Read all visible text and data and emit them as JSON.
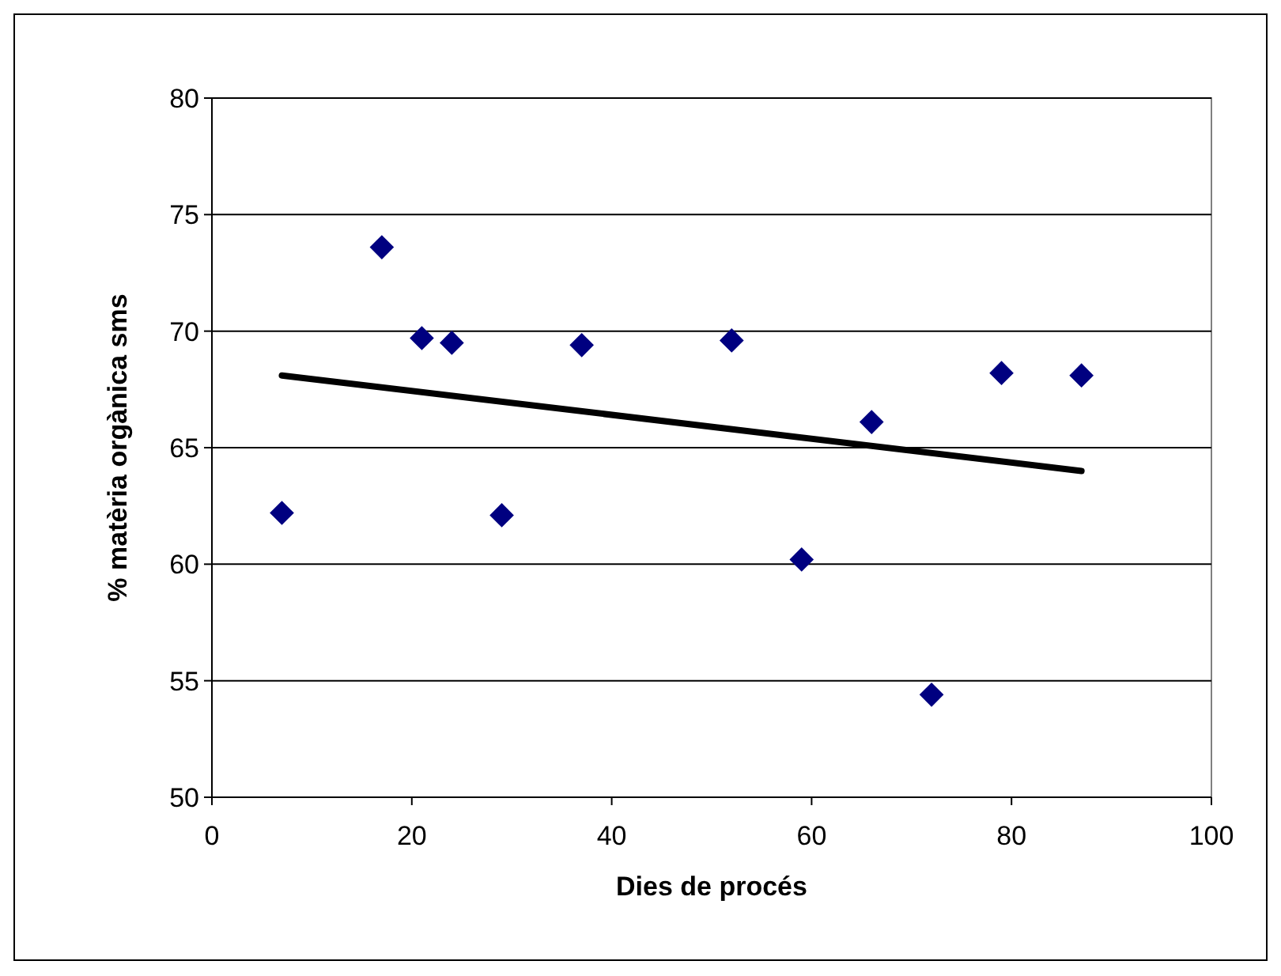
{
  "chart_data": {
    "type": "scatter",
    "xlabel": "Dies de procés",
    "ylabel": "% matèria orgànica sms",
    "xlim": [
      0,
      100
    ],
    "xticks": [
      0,
      20,
      40,
      60,
      80,
      100
    ],
    "ylim": [
      50,
      80
    ],
    "yticks": [
      50,
      55,
      60,
      65,
      70,
      75,
      80
    ],
    "grid": "y",
    "series": [
      {
        "color": "#000080",
        "marker": "diamond",
        "x": [
          7,
          17,
          21,
          24,
          29,
          37,
          52,
          59,
          66,
          72,
          79,
          87
        ],
        "values": [
          62.2,
          73.6,
          69.7,
          69.5,
          62.1,
          69.4,
          69.6,
          60.2,
          66.1,
          54.4,
          68.2,
          68.1
        ]
      },
      {
        "type": "line",
        "color": "#000000",
        "marker": "none",
        "x": [
          7,
          87
        ],
        "values": [
          68.1,
          64.0
        ]
      }
    ]
  }
}
